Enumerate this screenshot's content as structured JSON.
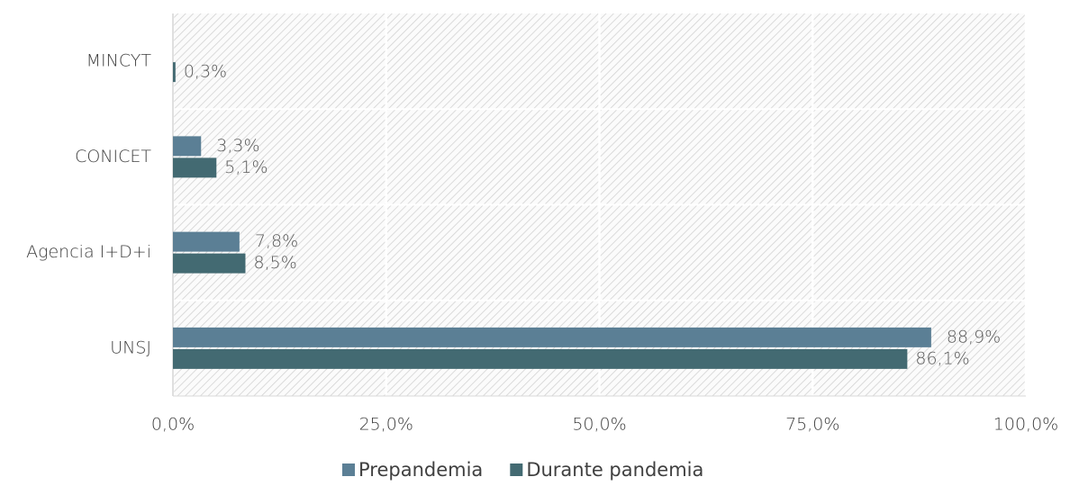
{
  "chart_data": {
    "type": "hbar",
    "categories": [
      "MINCYT",
      "CONICET",
      "Agencia I+D+i",
      "UNSJ"
    ],
    "series": [
      {
        "name": "Prepandemia",
        "color": "#5b7f95",
        "values": [
          null,
          3.3,
          7.8,
          88.9
        ],
        "value_labels": [
          null,
          "3,3%",
          "7,8%",
          "88,9%"
        ]
      },
      {
        "name": "Durante pandemia",
        "color": "#436a72",
        "values": [
          0.3,
          5.1,
          8.5,
          86.1
        ],
        "value_labels": [
          "0,3%",
          "5,1%",
          "8,5%",
          "86,1%"
        ]
      }
    ],
    "xlim": [
      0,
      100
    ],
    "xticks": [
      {
        "value": 0,
        "label": "0,0%"
      },
      {
        "value": 25,
        "label": "25,0%"
      },
      {
        "value": 50,
        "label": "50,0%"
      },
      {
        "value": 75,
        "label": "75,0%"
      },
      {
        "value": 100,
        "label": "100,0%"
      }
    ],
    "grid": true,
    "legend": "bottom"
  }
}
